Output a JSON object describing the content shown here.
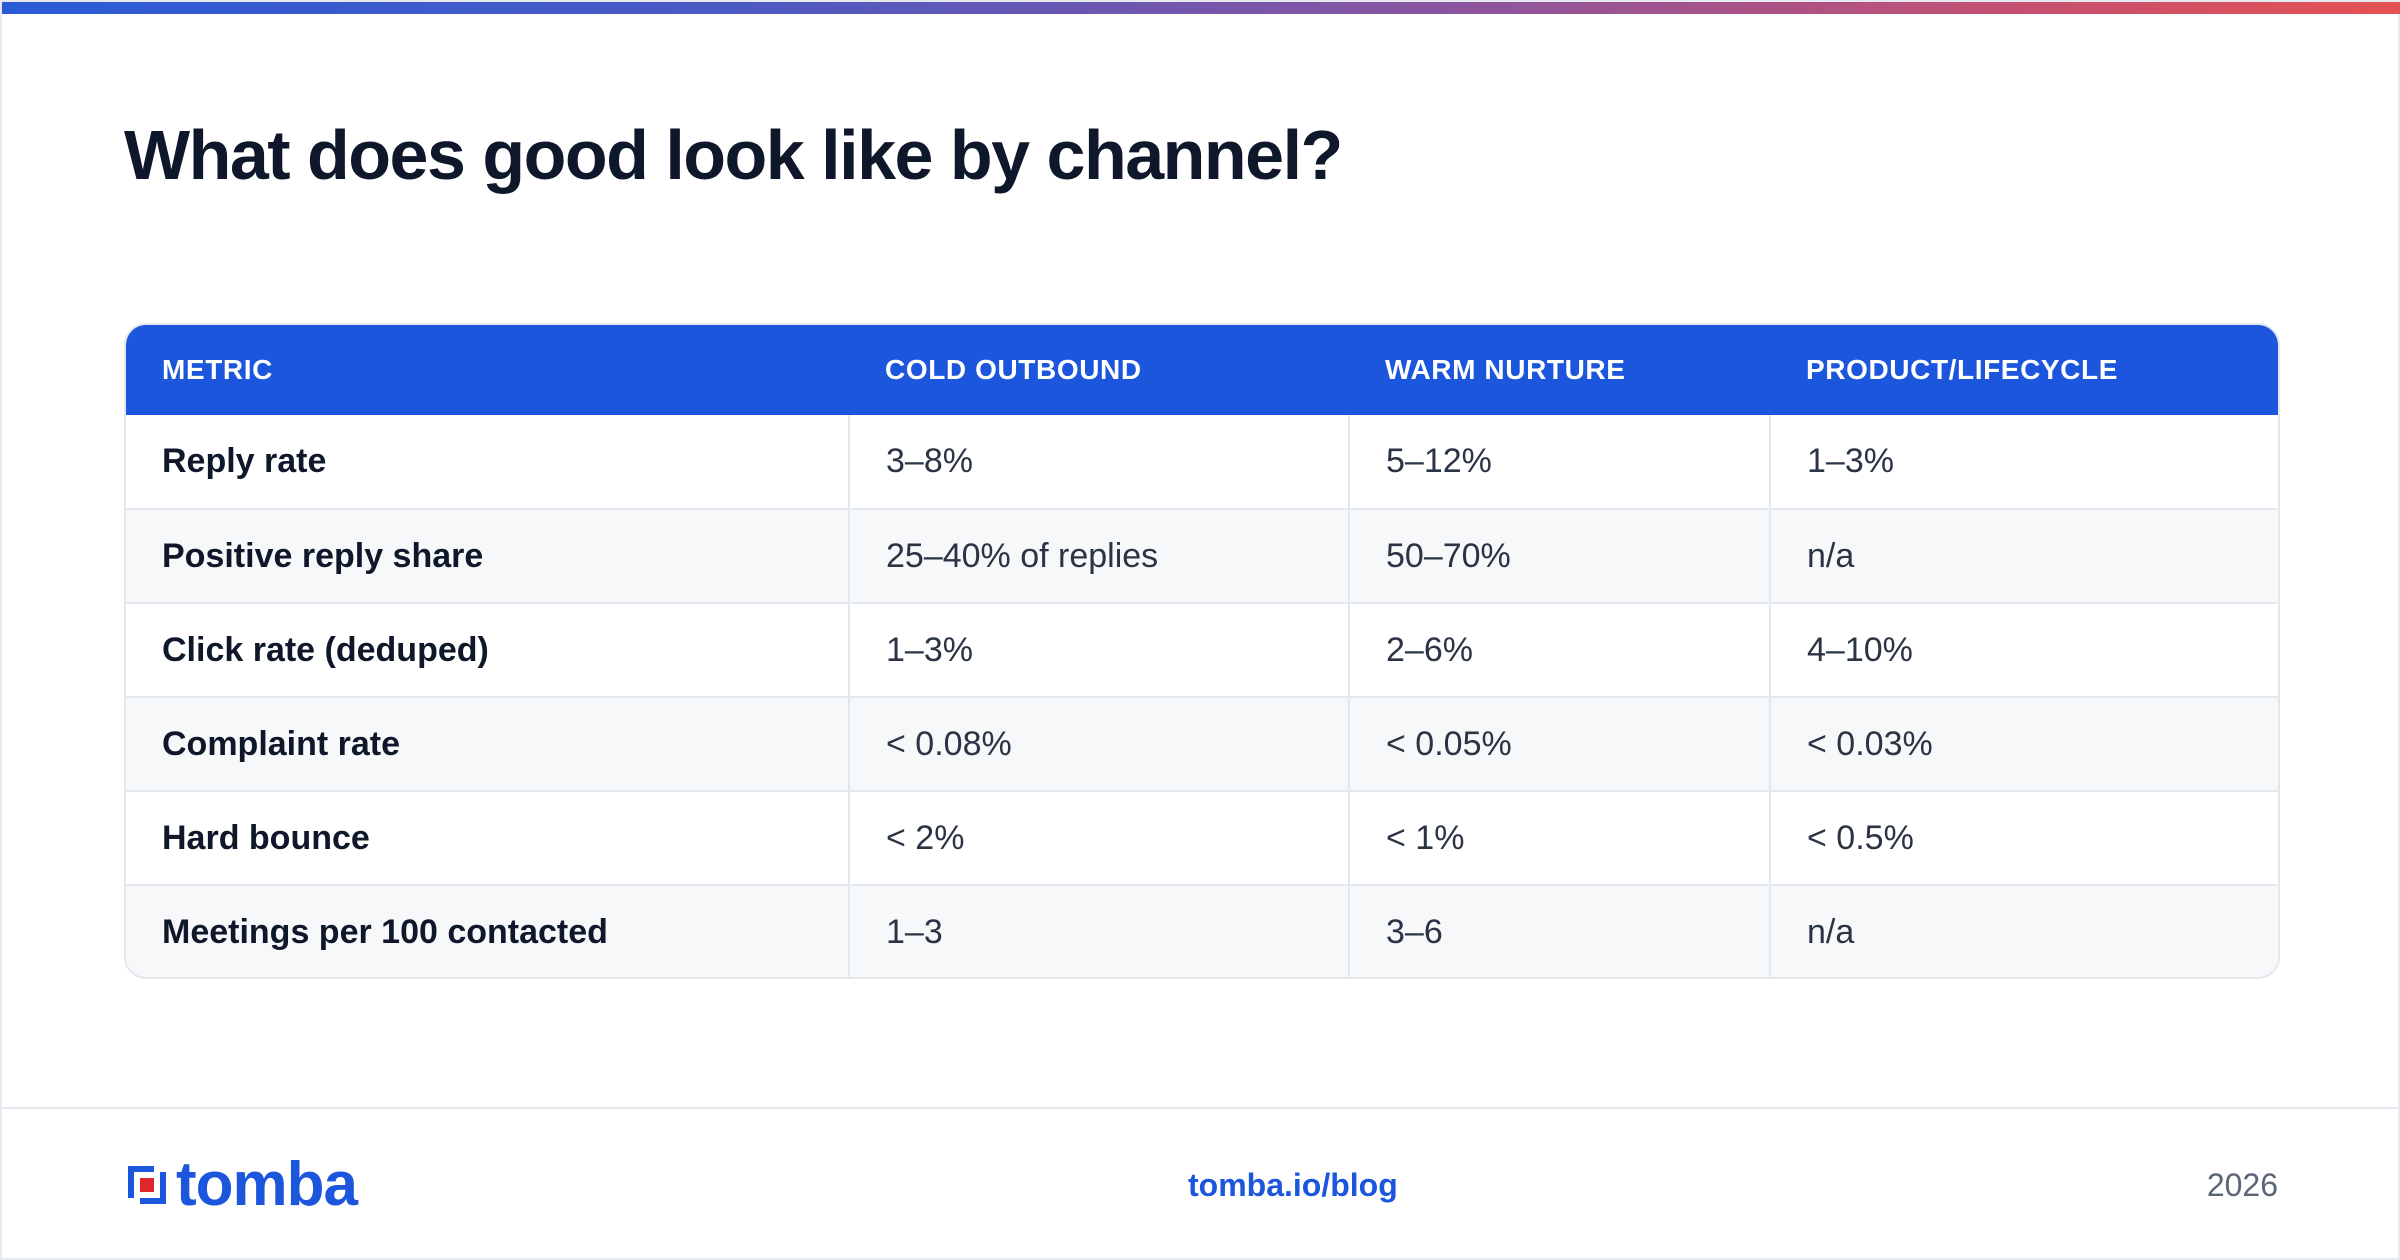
{
  "header": {
    "title": "What does good look like by channel?"
  },
  "table": {
    "columns": [
      "METRIC",
      "COLD OUTBOUND",
      "WARM NURTURE",
      "PRODUCT/LIFECYCLE"
    ],
    "rows": [
      [
        "Reply rate",
        "3–8%",
        "5–12%",
        "1–3%"
      ],
      [
        "Positive reply share",
        "25–40% of replies",
        "50–70%",
        "n/a"
      ],
      [
        "Click rate (deduped)",
        "1–3%",
        "2–6%",
        "4–10%"
      ],
      [
        "Complaint rate",
        "< 0.08%",
        "< 0.05%",
        "< 0.03%"
      ],
      [
        "Hard bounce",
        "< 2%",
        "< 1%",
        "< 0.5%"
      ],
      [
        "Meetings per 100 contacted",
        "1–3",
        "3–6",
        "n/a"
      ]
    ]
  },
  "footer": {
    "logo_text": "tomba",
    "link": "tomba.io/blog",
    "year": "2026"
  },
  "colors": {
    "accent": "#1b56dc",
    "title": "#0f172a",
    "logo_red": "#e0262b"
  }
}
